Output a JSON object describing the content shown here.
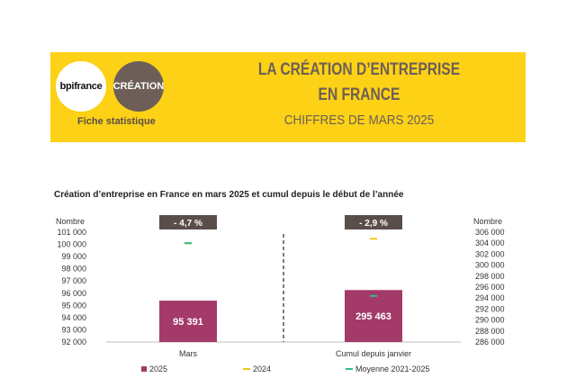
{
  "header": {
    "logo_left": "bpifrance",
    "logo_right": "CRÉATION",
    "fiche": "Fiche statistique",
    "title_line1": "LA CRÉATION D’ENTREPRISE",
    "title_line2": "EN FRANCE",
    "subtitle": "CHIFFRES DE MARS 2025"
  },
  "colors": {
    "banner": "#fcd116",
    "bar_2025": "#a33a6a",
    "marker_2024": "#f5c518",
    "marker_moyenne": "#2ebf8a",
    "badge": "#5a4e4a"
  },
  "chart_data": {
    "type": "bar",
    "title": "Création d’entreprise en France en mars 2025 et cumul depuis le début de l’année",
    "categories": [
      "Mars",
      "Cumul depuis janvier"
    ],
    "left_axis": {
      "label": "Nombre",
      "ylim": [
        92000,
        101000
      ],
      "ticks": [
        "92 000",
        "93 000",
        "94 000",
        "95 000",
        "96 000",
        "97 000",
        "98 000",
        "99 000",
        "100 000",
        "101 000"
      ]
    },
    "right_axis": {
      "label": "Nombre",
      "ylim": [
        286000,
        306000
      ],
      "ticks": [
        "286 000",
        "288 000",
        "290 000",
        "292 000",
        "294 000",
        "296 000",
        "298 000",
        "300 000",
        "302 000",
        "304 000",
        "306 000"
      ]
    },
    "series": [
      {
        "name": "2025",
        "values": [
          95391,
          295463
        ]
      },
      {
        "name": "2024",
        "values": [
          100100,
          304800
        ]
      },
      {
        "name": "Moyenne 2021-2025",
        "values": [
          100100,
          294400
        ]
      }
    ],
    "data_labels": [
      "95 391",
      "295 463"
    ],
    "change_labels": [
      "- 4,7 %",
      "- 2,9 %"
    ],
    "legend_position": "bottom"
  }
}
